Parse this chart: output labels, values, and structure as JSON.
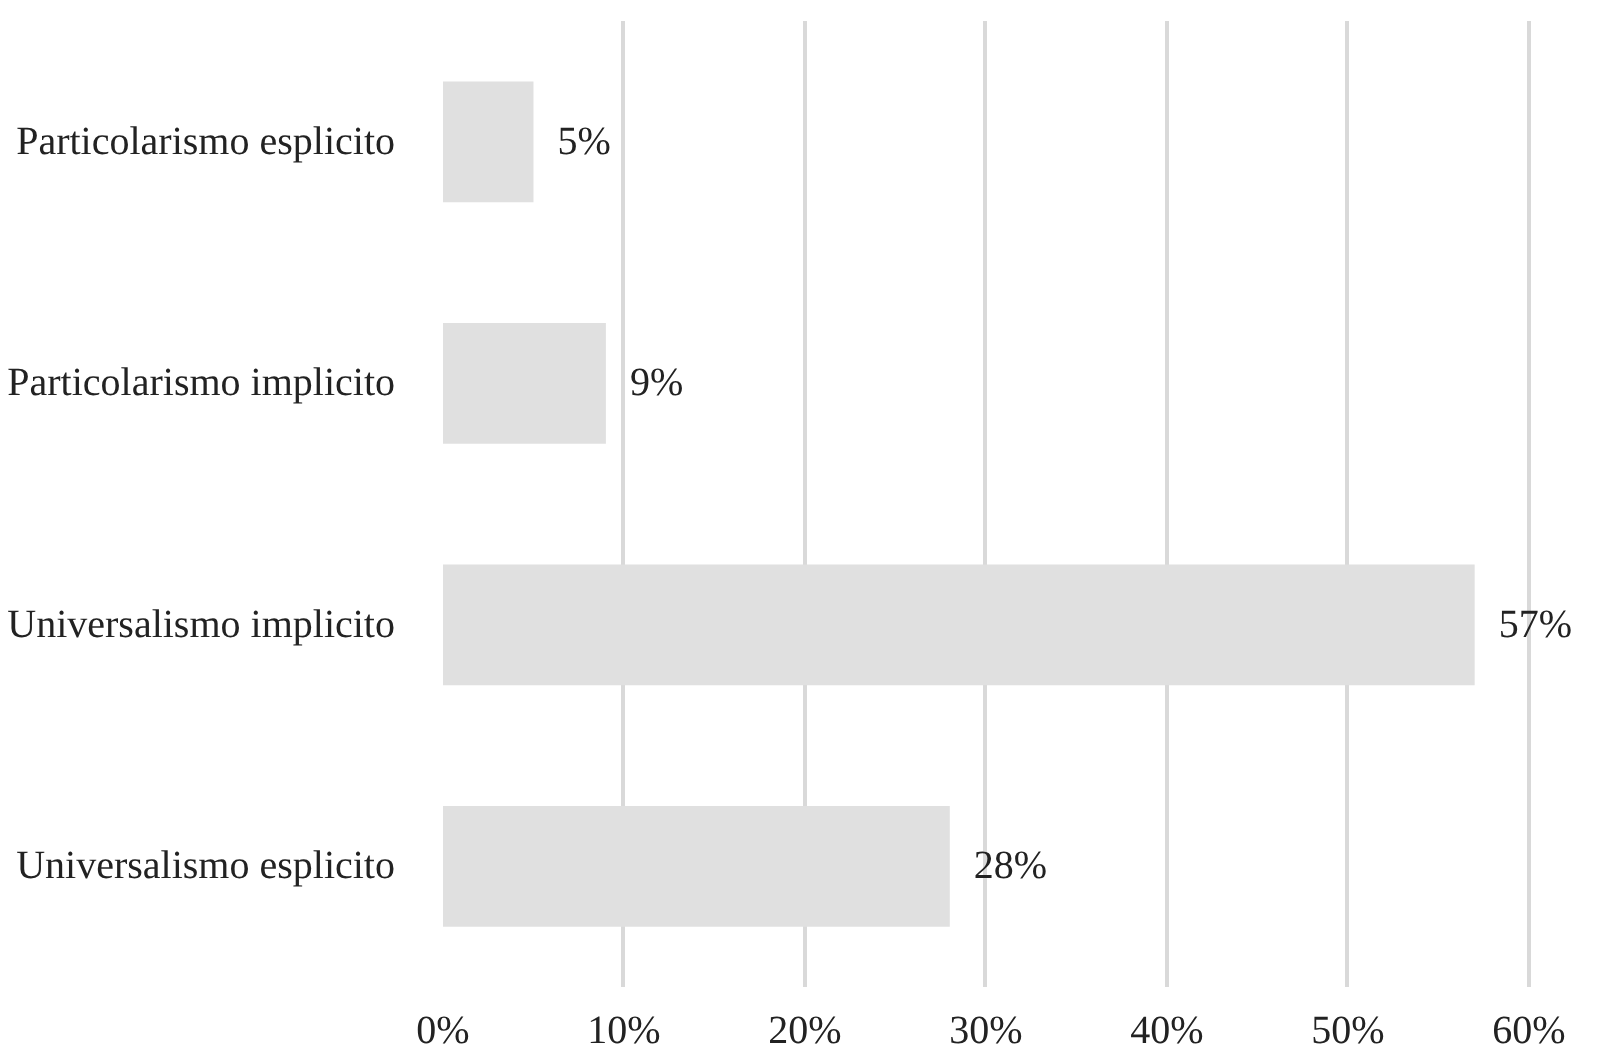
{
  "chart_data": {
    "type": "bar",
    "orientation": "horizontal",
    "categories": [
      "Particolarismo esplicito",
      "Particolarismo implicito",
      "Universalismo implicito",
      "Universalismo esplicito"
    ],
    "values": [
      5,
      9,
      57,
      28
    ],
    "color": "#e0e0e0",
    "value_labels": [
      "5%",
      "9%",
      "57%",
      "28%"
    ],
    "xlim": [
      0,
      60
    ],
    "xticks": [
      {
        "value": 0,
        "label": "0%"
      },
      {
        "value": 10,
        "label": "10%"
      },
      {
        "value": 20,
        "label": "20%"
      },
      {
        "value": 30,
        "label": "30%"
      },
      {
        "value": 40,
        "label": "40%"
      },
      {
        "value": 50,
        "label": "50%"
      },
      {
        "value": 60,
        "label": "60%"
      }
    ],
    "grid": "x"
  }
}
